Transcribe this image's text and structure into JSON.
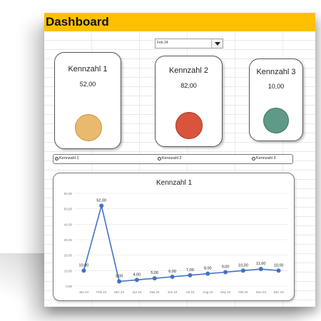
{
  "header": {
    "title": "Dashboard",
    "color": "#ffc000"
  },
  "period_selector": {
    "selected": "Feb 24"
  },
  "kpi_cards": [
    {
      "title": "Kennzahl 1",
      "value": "52,00",
      "status_color": "#e9b96e"
    },
    {
      "title": "Kennzahl 2",
      "value": "82,00",
      "status_color": "#d9533d"
    },
    {
      "title": "Kennzahl 3",
      "value": "10,00",
      "status_color": "#5e9a87"
    }
  ],
  "kpi_selector": {
    "options": [
      "Kennzahl 1",
      "Kennzahl 2",
      "Kennzahl 3"
    ],
    "selected": "Kennzahl 1"
  },
  "chart_data": {
    "type": "line",
    "title": "Kennzahl 1",
    "categories": [
      "Jan 24",
      "Feb 24",
      "Mrz 24",
      "Apr 24",
      "Mai 24",
      "Jun 24",
      "Jul 24",
      "Aug 24",
      "Sep 24",
      "Okt 24",
      "Nov 24",
      "Dez 24"
    ],
    "series": [
      {
        "values": [
          10,
          52,
          3,
          4,
          5,
          6,
          7,
          8,
          9,
          10,
          11,
          10
        ],
        "color": "#4472c4"
      }
    ],
    "data_labels": [
      "10,00",
      "52,00",
      "3,00",
      "4,00",
      "5,00",
      "6,00",
      "7,00",
      "8,00",
      "9,00",
      "10,00",
      "11,00",
      "10,00"
    ],
    "y_ticks": [
      "0,00",
      "10,00",
      "20,00",
      "30,00",
      "40,00",
      "50,00",
      "60,00"
    ],
    "ylim": [
      0,
      60
    ],
    "grid": true,
    "legend": "none"
  }
}
